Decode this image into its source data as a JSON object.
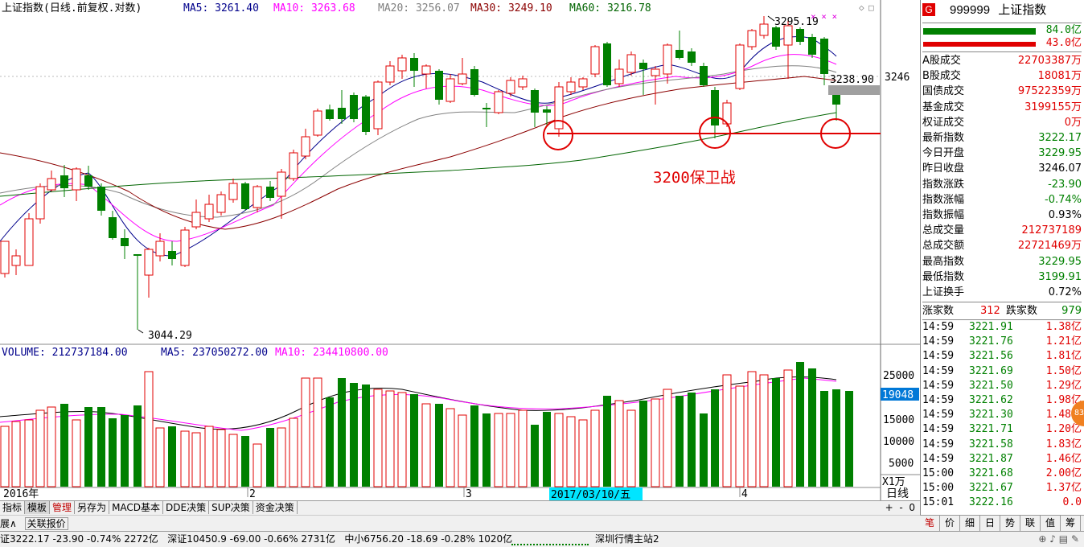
{
  "header": {
    "title": "上证指数(日线.前复权.对数)",
    "ma5": "MA5: 3261.40",
    "ma10": "MA10: 3263.68",
    "ma20": "MA20: 3256.07",
    "ma30": "MA30: 3249.10",
    "ma60": "MA60: 3216.78"
  },
  "price_chart": {
    "high_label": "3295.19",
    "low_label": "3044.29",
    "last_close_label": "3238.90",
    "axis_label": "3246",
    "annotation": "3200保卫战"
  },
  "volume_header": {
    "volume": "VOLUME: 212737184.00",
    "ma5": "MA5: 237050272.00",
    "ma10": "MA10: 234410800.00"
  },
  "volume_axis": {
    "ticks": [
      "25000",
      "15000",
      "10000",
      "5000"
    ],
    "current": "19048",
    "unit": "X1万"
  },
  "date_axis": {
    "labels": [
      "2016年",
      "2",
      "3",
      "4"
    ],
    "selected_date": "2017/03/10/五",
    "period": "日线"
  },
  "bottom_tabs": [
    "指标",
    "模板",
    "管理",
    "另存为",
    "MACD基本",
    "DDE决策",
    "SUP决策",
    "资金决策"
  ],
  "sub_bar": {
    "item1": "展∧",
    "item2": "关联报价",
    "zoom_plus": "+",
    "zoom_minus": "-",
    "zoom_value": "0"
  },
  "right_panel": {
    "badge": "G",
    "code": "999999",
    "name": "上证指数",
    "bar1_value": "84.0亿",
    "bar2_value": "43.0亿",
    "stats": [
      {
        "label": "A股成交",
        "value": "22703387万",
        "color": "red"
      },
      {
        "label": "B股成交",
        "value": "18081万",
        "color": "red"
      },
      {
        "label": "国债成交",
        "value": "97522359万",
        "color": "red"
      },
      {
        "label": "基金成交",
        "value": "3199155万",
        "color": "red"
      },
      {
        "label": "权证成交",
        "value": "0万",
        "color": "red"
      },
      {
        "label": "最新指数",
        "value": "3222.17",
        "color": "green"
      },
      {
        "label": "今日开盘",
        "value": "3229.95",
        "color": "green"
      },
      {
        "label": "昨日收盘",
        "value": "3246.07",
        "color": "black"
      },
      {
        "label": "指数涨跌",
        "value": "-23.90",
        "color": "green"
      },
      {
        "label": "指数涨幅",
        "value": "-0.74%",
        "color": "green"
      },
      {
        "label": "指数振幅",
        "value": "0.93%",
        "color": "black"
      },
      {
        "label": "总成交量",
        "value": "212737189",
        "color": "red"
      },
      {
        "label": "总成交额",
        "value": "22721469万",
        "color": "red"
      },
      {
        "label": "最高指数",
        "value": "3229.95",
        "color": "green"
      },
      {
        "label": "最低指数",
        "value": "3199.91",
        "color": "green"
      },
      {
        "label": "上证换手",
        "value": "0.72%",
        "color": "black"
      }
    ],
    "up_label": "涨家数",
    "up_count": "312",
    "down_label": "跌家数",
    "down_count": "979",
    "ticks": [
      {
        "time": "14:59",
        "price": "3221.91",
        "chg": "1.38亿"
      },
      {
        "time": "14:59",
        "price": "3221.76",
        "chg": "1.21亿"
      },
      {
        "time": "14:59",
        "price": "3221.56",
        "chg": "1.81亿"
      },
      {
        "time": "14:59",
        "price": "3221.69",
        "chg": "1.50亿"
      },
      {
        "time": "14:59",
        "price": "3221.50",
        "chg": "1.29亿"
      },
      {
        "time": "14:59",
        "price": "3221.62",
        "chg": "1.98亿"
      },
      {
        "time": "14:59",
        "price": "3221.30",
        "chg": "1.48亿"
      },
      {
        "time": "14:59",
        "price": "3221.71",
        "chg": "1.20亿"
      },
      {
        "time": "14:59",
        "price": "3221.58",
        "chg": "1.83亿"
      },
      {
        "time": "14:59",
        "price": "3221.87",
        "chg": "1.46亿"
      },
      {
        "time": "15:00",
        "price": "3221.68",
        "chg": "2.00亿"
      },
      {
        "time": "15:00",
        "price": "3221.67",
        "chg": "1.37亿"
      },
      {
        "time": "15:01",
        "price": "3222.16",
        "chg": "0.0"
      }
    ],
    "tabs": [
      "笔",
      "价",
      "细",
      "日",
      "势",
      "联",
      "值",
      "筹"
    ]
  },
  "status_bar": {
    "sh": "证3222.17  -23.90  -0.74%  2272亿",
    "sz": "深证10450.9  -69.00  -0.66%  2731亿",
    "zx": "中小6756.20  -18.69  -0.28%  1020亿",
    "server": "深圳行情主站2"
  }
}
